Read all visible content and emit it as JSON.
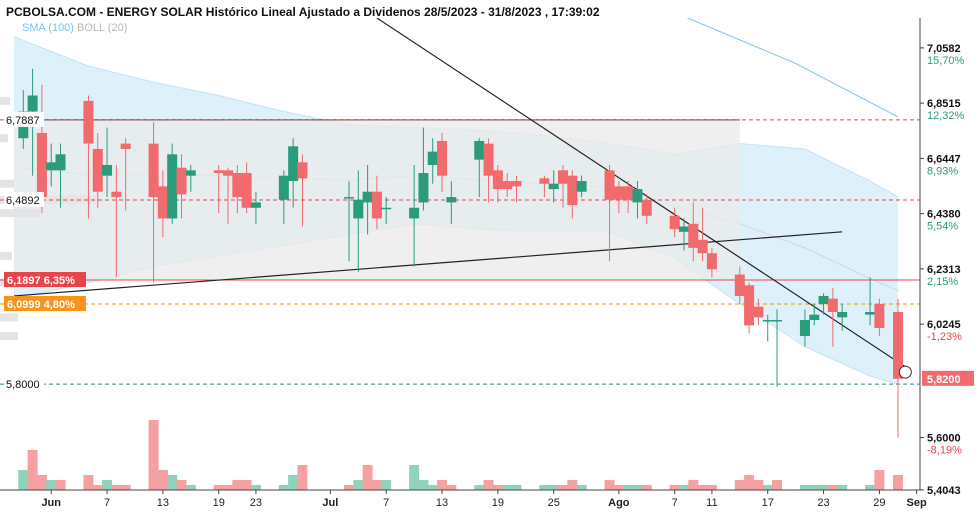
{
  "header": {
    "title": "PCBOLSA.COM - ENERGY SOLAR Histórico Lineal Ajustado a Dividenos 28/5/2023 - 31/8/2023 , 17:39:02"
  },
  "indicators": {
    "sma": "SMA (100)",
    "boll": "BOLL (20)"
  },
  "colors": {
    "up": "#2a9b7b",
    "down": "#f06a6e",
    "band": "#d8eefa",
    "channel": "#e9e9e9",
    "accent_orange": "#f7931e",
    "resist_red": "#e8454a"
  },
  "chart_data": {
    "type": "candlestick",
    "title": "PCBOLSA.COM - ENERGY SOLAR Histórico Lineal Ajustado a Dividenos 28/5/2023 - 31/8/2023 , 17:39:02",
    "xlabel": "",
    "ylabel": "",
    "x_range": [
      "2023-05-28",
      "2023-08-31"
    ],
    "y_range": [
      5.404,
      7.17
    ],
    "x_ticks": [
      {
        "date": "2023-06-01",
        "label": "Jun"
      },
      {
        "date": "2023-06-07",
        "label": "7"
      },
      {
        "date": "2023-06-13",
        "label": "13"
      },
      {
        "date": "2023-06-19",
        "label": "19"
      },
      {
        "date": "2023-06-23",
        "label": "23"
      },
      {
        "date": "2023-07-01",
        "label": "Jul"
      },
      {
        "date": "2023-07-07",
        "label": "7"
      },
      {
        "date": "2023-07-13",
        "label": "13"
      },
      {
        "date": "2023-07-19",
        "label": "19"
      },
      {
        "date": "2023-07-25",
        "label": "25"
      },
      {
        "date": "2023-08-01",
        "label": "Ago"
      },
      {
        "date": "2023-08-07",
        "label": "7"
      },
      {
        "date": "2023-08-11",
        "label": "11"
      },
      {
        "date": "2023-08-17",
        "label": "17"
      },
      {
        "date": "2023-08-23",
        "label": "23"
      },
      {
        "date": "2023-08-29",
        "label": "29"
      },
      {
        "date": "2023-09-02",
        "label": "Sep"
      }
    ],
    "y_ticks": [
      {
        "value": 7.0582,
        "label": "7,0582",
        "pct": "15,70%",
        "pct_color": "#2a9b7b"
      },
      {
        "value": 6.8515,
        "label": "6,8515",
        "pct": "12,32%",
        "pct_color": "#2a9b7b"
      },
      {
        "value": 6.6447,
        "label": "6,6447",
        "pct": "8,93%",
        "pct_color": "#2a9b7b"
      },
      {
        "value": 6.438,
        "label": "6,4380",
        "pct": "5,54%",
        "pct_color": "#2a9b7b"
      },
      {
        "value": 6.2313,
        "label": "6,2313",
        "pct": "2,15%",
        "pct_color": "#2a9b7b"
      },
      {
        "value": 6.0245,
        "label": "6,0245",
        "pct": "-1,23%",
        "pct_color": "#e8454a"
      },
      {
        "value": 5.6,
        "label": "5,6000",
        "pct": "-8,19%",
        "pct_color": "#e8454a"
      },
      {
        "value": 5.4043,
        "label": "5,4043",
        "pct": "",
        "pct_color": "#e8454a"
      }
    ],
    "levels": [
      {
        "value": 6.7887,
        "label": "6,7887",
        "pct": "",
        "style": "dash-red"
      },
      {
        "value": 6.4892,
        "label": "6,4892",
        "pct": "",
        "style": "dash-red"
      },
      {
        "value": 6.1897,
        "label": "6,1897",
        "pct": "6,35%",
        "style": "solid-red"
      },
      {
        "value": 6.0999,
        "label": "6,0999",
        "pct": "4,80%",
        "style": "dash-orange"
      },
      {
        "value": 5.8,
        "label": "5,8000",
        "pct": "",
        "style": "dash-teal"
      }
    ],
    "last_price": {
      "value": 5.82,
      "label": "5,8200"
    },
    "candles": [
      {
        "date": "2023-05-29",
        "o": 6.72,
        "c": 6.82,
        "h": 6.9,
        "l": 6.68
      },
      {
        "date": "2023-05-30",
        "o": 6.82,
        "c": 6.88,
        "h": 6.98,
        "l": 6.58
      },
      {
        "date": "2023-05-31",
        "o": 6.74,
        "c": 6.5,
        "h": 6.92,
        "l": 6.44
      },
      {
        "date": "2023-06-01",
        "o": 6.6,
        "c": 6.63,
        "h": 6.7,
        "l": 6.54
      },
      {
        "date": "2023-06-02",
        "o": 6.6,
        "c": 6.66,
        "h": 6.7,
        "l": 6.46
      },
      {
        "date": "2023-06-05",
        "o": 6.86,
        "c": 6.7,
        "h": 6.88,
        "l": 6.42
      },
      {
        "date": "2023-06-06",
        "o": 6.68,
        "c": 6.52,
        "h": 6.74,
        "l": 6.46
      },
      {
        "date": "2023-06-07",
        "o": 6.58,
        "c": 6.62,
        "h": 6.76,
        "l": 6.5
      },
      {
        "date": "2023-06-08",
        "o": 6.52,
        "c": 6.5,
        "h": 6.62,
        "l": 6.2
      },
      {
        "date": "2023-06-09",
        "o": 6.7,
        "c": 6.68,
        "h": 6.72,
        "l": 6.45
      },
      {
        "date": "2023-06-12",
        "o": 6.7,
        "c": 6.5,
        "h": 6.78,
        "l": 6.18
      },
      {
        "date": "2023-06-13",
        "o": 6.54,
        "c": 6.42,
        "h": 6.6,
        "l": 6.35
      },
      {
        "date": "2023-06-14",
        "o": 6.42,
        "c": 6.66,
        "h": 6.7,
        "l": 6.4
      },
      {
        "date": "2023-06-15",
        "o": 6.61,
        "c": 6.51,
        "h": 6.66,
        "l": 6.42
      },
      {
        "date": "2023-06-16",
        "o": 6.58,
        "c": 6.6,
        "h": 6.62,
        "l": 6.52
      },
      {
        "date": "2023-06-19",
        "o": 6.6,
        "c": 6.59,
        "h": 6.62,
        "l": 6.44
      },
      {
        "date": "2023-06-20",
        "o": 6.6,
        "c": 6.58,
        "h": 6.61,
        "l": 6.4
      },
      {
        "date": "2023-06-21",
        "o": 6.59,
        "c": 6.5,
        "h": 6.62,
        "l": 6.44
      },
      {
        "date": "2023-06-22",
        "o": 6.59,
        "c": 6.46,
        "h": 6.63,
        "l": 6.44
      },
      {
        "date": "2023-06-23",
        "o": 6.46,
        "c": 6.48,
        "h": 6.52,
        "l": 6.4
      },
      {
        "date": "2023-06-26",
        "o": 6.49,
        "c": 6.58,
        "h": 6.6,
        "l": 6.4
      },
      {
        "date": "2023-06-27",
        "o": 6.56,
        "c": 6.69,
        "h": 6.72,
        "l": 6.46
      },
      {
        "date": "2023-06-28",
        "o": 6.63,
        "c": 6.57,
        "h": 6.66,
        "l": 6.39
      },
      {
        "date": "2023-07-03",
        "o": 6.5,
        "c": 6.5,
        "h": 6.56,
        "l": 6.26
      },
      {
        "date": "2023-07-04",
        "o": 6.42,
        "c": 6.49,
        "h": 6.6,
        "l": 6.22
      },
      {
        "date": "2023-07-05",
        "o": 6.48,
        "c": 6.52,
        "h": 6.62,
        "l": 6.36
      },
      {
        "date": "2023-07-06",
        "o": 6.52,
        "c": 6.42,
        "h": 6.58,
        "l": 6.38
      },
      {
        "date": "2023-07-07",
        "o": 6.46,
        "c": 6.46,
        "h": 6.5,
        "l": 6.4
      },
      {
        "date": "2023-07-10",
        "o": 6.42,
        "c": 6.46,
        "h": 6.62,
        "l": 6.24
      },
      {
        "date": "2023-07-11",
        "o": 6.48,
        "c": 6.59,
        "h": 6.76,
        "l": 6.45
      },
      {
        "date": "2023-07-12",
        "o": 6.62,
        "c": 6.67,
        "h": 6.72,
        "l": 6.55
      },
      {
        "date": "2023-07-13",
        "o": 6.71,
        "c": 6.58,
        "h": 6.74,
        "l": 6.52
      },
      {
        "date": "2023-07-14",
        "o": 6.48,
        "c": 6.5,
        "h": 6.56,
        "l": 6.4
      },
      {
        "date": "2023-07-17",
        "o": 6.64,
        "c": 6.71,
        "h": 6.72,
        "l": 6.5
      },
      {
        "date": "2023-07-18",
        "o": 6.7,
        "c": 6.58,
        "h": 6.72,
        "l": 6.48
      },
      {
        "date": "2023-07-19",
        "o": 6.6,
        "c": 6.53,
        "h": 6.62,
        "l": 6.48
      },
      {
        "date": "2023-07-20",
        "o": 6.56,
        "c": 6.53,
        "h": 6.59,
        "l": 6.5
      },
      {
        "date": "2023-07-21",
        "o": 6.56,
        "c": 6.54,
        "h": 6.58,
        "l": 6.48
      },
      {
        "date": "2023-07-24",
        "o": 6.57,
        "c": 6.55,
        "h": 6.58,
        "l": 6.5
      },
      {
        "date": "2023-07-25",
        "o": 6.53,
        "c": 6.55,
        "h": 6.6,
        "l": 6.48
      },
      {
        "date": "2023-07-26",
        "o": 6.6,
        "c": 6.55,
        "h": 6.62,
        "l": 6.46
      },
      {
        "date": "2023-07-27",
        "o": 6.58,
        "c": 6.47,
        "h": 6.6,
        "l": 6.42
      },
      {
        "date": "2023-07-28",
        "o": 6.52,
        "c": 6.56,
        "h": 6.58,
        "l": 6.5
      },
      {
        "date": "2023-07-31",
        "o": 6.6,
        "c": 6.49,
        "h": 6.62,
        "l": 6.26
      },
      {
        "date": "2023-08-01",
        "o": 6.54,
        "c": 6.49,
        "h": 6.56,
        "l": 6.44
      },
      {
        "date": "2023-08-02",
        "o": 6.54,
        "c": 6.49,
        "h": 6.56,
        "l": 6.44
      },
      {
        "date": "2023-08-03",
        "o": 6.48,
        "c": 6.53,
        "h": 6.56,
        "l": 6.42
      },
      {
        "date": "2023-08-04",
        "o": 6.49,
        "c": 6.43,
        "h": 6.51,
        "l": 6.4
      },
      {
        "date": "2023-08-07",
        "o": 6.43,
        "c": 6.38,
        "h": 6.46,
        "l": 6.35
      },
      {
        "date": "2023-08-08",
        "o": 6.37,
        "c": 6.39,
        "h": 6.42,
        "l": 6.3
      },
      {
        "date": "2023-08-09",
        "o": 6.4,
        "c": 6.31,
        "h": 6.48,
        "l": 6.26
      },
      {
        "date": "2023-08-10",
        "o": 6.34,
        "c": 6.29,
        "h": 6.46,
        "l": 6.26
      },
      {
        "date": "2023-08-11",
        "o": 6.29,
        "c": 6.23,
        "h": 6.31,
        "l": 6.2
      },
      {
        "date": "2023-08-14",
        "o": 6.21,
        "c": 6.13,
        "h": 6.24,
        "l": 6.1
      },
      {
        "date": "2023-08-15",
        "o": 6.17,
        "c": 6.02,
        "h": 6.18,
        "l": 5.99
      },
      {
        "date": "2023-08-16",
        "o": 6.09,
        "c": 6.05,
        "h": 6.12,
        "l": 6.02
      },
      {
        "date": "2023-08-17",
        "o": 6.04,
        "c": 6.04,
        "h": 6.06,
        "l": 5.96
      },
      {
        "date": "2023-08-18",
        "o": 6.04,
        "c": 6.04,
        "h": 6.08,
        "l": 5.79
      },
      {
        "date": "2023-08-21",
        "o": 5.98,
        "c": 6.04,
        "h": 6.08,
        "l": 5.94
      },
      {
        "date": "2023-08-22",
        "o": 6.04,
        "c": 6.06,
        "h": 6.1,
        "l": 6.02
      },
      {
        "date": "2023-08-23",
        "o": 6.1,
        "c": 6.13,
        "h": 6.14,
        "l": 6.06
      },
      {
        "date": "2023-08-24",
        "o": 6.12,
        "c": 6.07,
        "h": 6.16,
        "l": 5.94
      },
      {
        "date": "2023-08-25",
        "o": 6.05,
        "c": 6.07,
        "h": 6.1,
        "l": 6.0
      },
      {
        "date": "2023-08-28",
        "o": 6.06,
        "c": 6.07,
        "h": 6.2,
        "l": 6.02
      },
      {
        "date": "2023-08-29",
        "o": 6.1,
        "c": 6.01,
        "h": 6.12,
        "l": 5.98
      },
      {
        "date": "2023-08-31",
        "o": 6.07,
        "c": 5.82,
        "h": 6.12,
        "l": 5.6
      }
    ],
    "volume": [
      {
        "date": "2023-05-29",
        "v": 4,
        "up": true
      },
      {
        "date": "2023-05-30",
        "v": 8,
        "up": false
      },
      {
        "date": "2023-05-31",
        "v": 3,
        "up": false
      },
      {
        "date": "2023-06-01",
        "v": 2,
        "up": true
      },
      {
        "date": "2023-06-02",
        "v": 2,
        "up": false
      },
      {
        "date": "2023-06-05",
        "v": 3,
        "up": false
      },
      {
        "date": "2023-06-06",
        "v": 1,
        "up": false
      },
      {
        "date": "2023-06-07",
        "v": 2,
        "up": true
      },
      {
        "date": "2023-06-08",
        "v": 1,
        "up": false
      },
      {
        "date": "2023-06-09",
        "v": 1,
        "up": false
      },
      {
        "date": "2023-06-12",
        "v": 14,
        "up": false
      },
      {
        "date": "2023-06-13",
        "v": 4,
        "up": false
      },
      {
        "date": "2023-06-14",
        "v": 3,
        "up": true
      },
      {
        "date": "2023-06-15",
        "v": 2,
        "up": false
      },
      {
        "date": "2023-06-16",
        "v": 1,
        "up": true
      },
      {
        "date": "2023-06-19",
        "v": 1,
        "up": false
      },
      {
        "date": "2023-06-20",
        "v": 1,
        "up": false
      },
      {
        "date": "2023-06-21",
        "v": 2,
        "up": false
      },
      {
        "date": "2023-06-22",
        "v": 2,
        "up": false
      },
      {
        "date": "2023-06-23",
        "v": 1,
        "up": true
      },
      {
        "date": "2023-06-26",
        "v": 1,
        "up": true
      },
      {
        "date": "2023-06-27",
        "v": 3,
        "up": true
      },
      {
        "date": "2023-06-28",
        "v": 5,
        "up": false
      },
      {
        "date": "2023-07-03",
        "v": 1,
        "up": false
      },
      {
        "date": "2023-07-04",
        "v": 2,
        "up": true
      },
      {
        "date": "2023-07-05",
        "v": 5,
        "up": false
      },
      {
        "date": "2023-07-06",
        "v": 2,
        "up": false
      },
      {
        "date": "2023-07-07",
        "v": 2,
        "up": true
      },
      {
        "date": "2023-07-10",
        "v": 5,
        "up": true
      },
      {
        "date": "2023-07-11",
        "v": 2,
        "up": true
      },
      {
        "date": "2023-07-12",
        "v": 1,
        "up": true
      },
      {
        "date": "2023-07-13",
        "v": 2,
        "up": false
      },
      {
        "date": "2023-07-14",
        "v": 1,
        "up": false
      },
      {
        "date": "2023-07-17",
        "v": 1,
        "up": true
      },
      {
        "date": "2023-07-18",
        "v": 2,
        "up": false
      },
      {
        "date": "2023-07-19",
        "v": 1,
        "up": false
      },
      {
        "date": "2023-07-20",
        "v": 1,
        "up": true
      },
      {
        "date": "2023-07-21",
        "v": 1,
        "up": true
      },
      {
        "date": "2023-07-24",
        "v": 1,
        "up": true
      },
      {
        "date": "2023-07-25",
        "v": 1,
        "up": true
      },
      {
        "date": "2023-07-26",
        "v": 1,
        "up": false
      },
      {
        "date": "2023-07-27",
        "v": 2,
        "up": false
      },
      {
        "date": "2023-07-28",
        "v": 1,
        "up": true
      },
      {
        "date": "2023-07-31",
        "v": 2,
        "up": false
      },
      {
        "date": "2023-08-01",
        "v": 1,
        "up": false
      },
      {
        "date": "2023-08-02",
        "v": 1,
        "up": true
      },
      {
        "date": "2023-08-03",
        "v": 1,
        "up": true
      },
      {
        "date": "2023-08-04",
        "v": 1,
        "up": false
      },
      {
        "date": "2023-08-07",
        "v": 1,
        "up": false
      },
      {
        "date": "2023-08-08",
        "v": 1,
        "up": true
      },
      {
        "date": "2023-08-09",
        "v": 2,
        "up": false
      },
      {
        "date": "2023-08-10",
        "v": 1,
        "up": false
      },
      {
        "date": "2023-08-11",
        "v": 1,
        "up": false
      },
      {
        "date": "2023-08-14",
        "v": 2,
        "up": false
      },
      {
        "date": "2023-08-15",
        "v": 3,
        "up": false
      },
      {
        "date": "2023-08-16",
        "v": 2,
        "up": false
      },
      {
        "date": "2023-08-17",
        "v": 1,
        "up": true
      },
      {
        "date": "2023-08-18",
        "v": 2,
        "up": false
      },
      {
        "date": "2023-08-21",
        "v": 1,
        "up": true
      },
      {
        "date": "2023-08-22",
        "v": 1,
        "up": true
      },
      {
        "date": "2023-08-23",
        "v": 1,
        "up": true
      },
      {
        "date": "2023-08-24",
        "v": 1,
        "up": false
      },
      {
        "date": "2023-08-25",
        "v": 1,
        "up": true
      },
      {
        "date": "2023-08-28",
        "v": 1,
        "up": true
      },
      {
        "date": "2023-08-29",
        "v": 4,
        "up": false
      },
      {
        "date": "2023-08-31",
        "v": 3,
        "up": false
      }
    ],
    "bollinger": [
      {
        "date": "2023-05-28",
        "upper": 7.1,
        "lower": 6.12
      },
      {
        "date": "2023-06-05",
        "upper": 6.99,
        "lower": 6.18
      },
      {
        "date": "2023-06-12",
        "upper": 6.93,
        "lower": 6.24
      },
      {
        "date": "2023-06-19",
        "upper": 6.88,
        "lower": 6.28
      },
      {
        "date": "2023-06-26",
        "upper": 6.82,
        "lower": 6.32
      },
      {
        "date": "2023-07-03",
        "upper": 6.77,
        "lower": 6.36
      },
      {
        "date": "2023-07-10",
        "upper": 6.76,
        "lower": 6.4
      },
      {
        "date": "2023-07-17",
        "upper": 6.75,
        "lower": 6.38
      },
      {
        "date": "2023-07-24",
        "upper": 6.73,
        "lower": 6.37
      },
      {
        "date": "2023-07-31",
        "upper": 6.7,
        "lower": 6.37
      },
      {
        "date": "2023-08-07",
        "upper": 6.66,
        "lower": 6.27
      },
      {
        "date": "2023-08-14",
        "upper": 6.7,
        "lower": 6.1
      },
      {
        "date": "2023-08-21",
        "upper": 6.68,
        "lower": 5.94
      },
      {
        "date": "2023-08-28",
        "upper": 6.56,
        "lower": 5.83
      },
      {
        "date": "2023-08-31",
        "upper": 6.5,
        "lower": 5.8
      }
    ],
    "sma": [
      {
        "date": "2023-07-17",
        "v": 7.38
      },
      {
        "date": "2023-08-05",
        "v": 7.22
      },
      {
        "date": "2023-08-20",
        "v": 7.0
      },
      {
        "date": "2023-08-31",
        "v": 6.8
      }
    ],
    "channel": {
      "start": "2023-05-28",
      "end": "2023-08-14",
      "top": 6.7887,
      "bottom": 6.1897
    },
    "trendlines": [
      {
        "from": {
          "date": "2023-05-28",
          "value": 6.13
        },
        "to": {
          "date": "2023-08-25",
          "value": 6.37
        }
      },
      {
        "from": {
          "date": "2023-07-06",
          "value": 7.17
        },
        "to": {
          "date": "2023-09-01",
          "value": 5.86
        }
      }
    ]
  }
}
